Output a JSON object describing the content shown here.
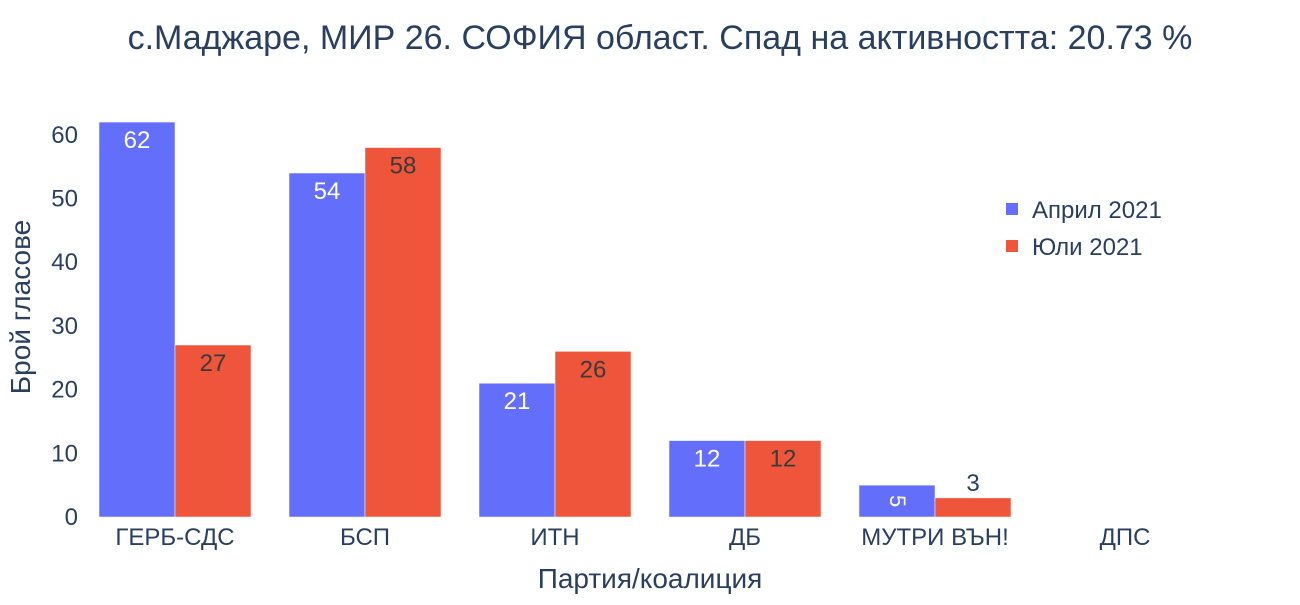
{
  "chart_data": {
    "type": "bar",
    "title": "с.Маджаре, МИР 26. СОФИЯ област. Спад на активността: 20.73 %",
    "xlabel": "Партия/коалиция",
    "ylabel": "Брой гласове",
    "categories": [
      "ГЕРБ-СДС",
      "БСП",
      "ИТН",
      "ДБ",
      "МУТРИ ВЪН!",
      "ДПС"
    ],
    "series": [
      {
        "name": "Април 2021",
        "color": "#636efa",
        "values": [
          62,
          54,
          21,
          12,
          5,
          0
        ]
      },
      {
        "name": "Юли 2021",
        "color": "#ef553b",
        "values": [
          27,
          58,
          26,
          12,
          3,
          0
        ]
      }
    ],
    "ylim": [
      0,
      65
    ],
    "yticks": [
      0,
      10,
      20,
      30,
      40,
      50,
      60
    ],
    "grid": false,
    "legend_position": "top-right"
  }
}
